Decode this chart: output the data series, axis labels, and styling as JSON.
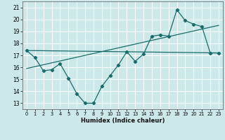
{
  "xlabel": "Humidex (Indice chaleur)",
  "bg_color": "#cce8e8",
  "grid_color": "#ffffff",
  "line_color": "#1a6b6b",
  "xlim": [
    -0.5,
    23.5
  ],
  "ylim": [
    12.5,
    21.5
  ],
  "yticks": [
    13,
    14,
    15,
    16,
    17,
    18,
    19,
    20,
    21
  ],
  "xticks": [
    0,
    1,
    2,
    3,
    4,
    5,
    6,
    7,
    8,
    9,
    10,
    11,
    12,
    13,
    14,
    15,
    16,
    17,
    18,
    19,
    20,
    21,
    22,
    23
  ],
  "series1_x": [
    0,
    1,
    2,
    3,
    4,
    5,
    6,
    7,
    8,
    9,
    10,
    11,
    12,
    13,
    14,
    15,
    16,
    17,
    18,
    19,
    20,
    21,
    22,
    23
  ],
  "series1_y": [
    17.4,
    16.8,
    15.7,
    15.8,
    16.3,
    15.1,
    13.8,
    13.0,
    13.0,
    14.4,
    15.3,
    16.2,
    17.3,
    16.5,
    17.1,
    18.6,
    18.7,
    18.6,
    20.8,
    19.9,
    19.6,
    19.4,
    17.2,
    17.2
  ],
  "line2_x": [
    0,
    23
  ],
  "line2_y": [
    17.4,
    17.2
  ],
  "line3_x": [
    0,
    23
  ],
  "line3_y": [
    15.9,
    19.5
  ]
}
